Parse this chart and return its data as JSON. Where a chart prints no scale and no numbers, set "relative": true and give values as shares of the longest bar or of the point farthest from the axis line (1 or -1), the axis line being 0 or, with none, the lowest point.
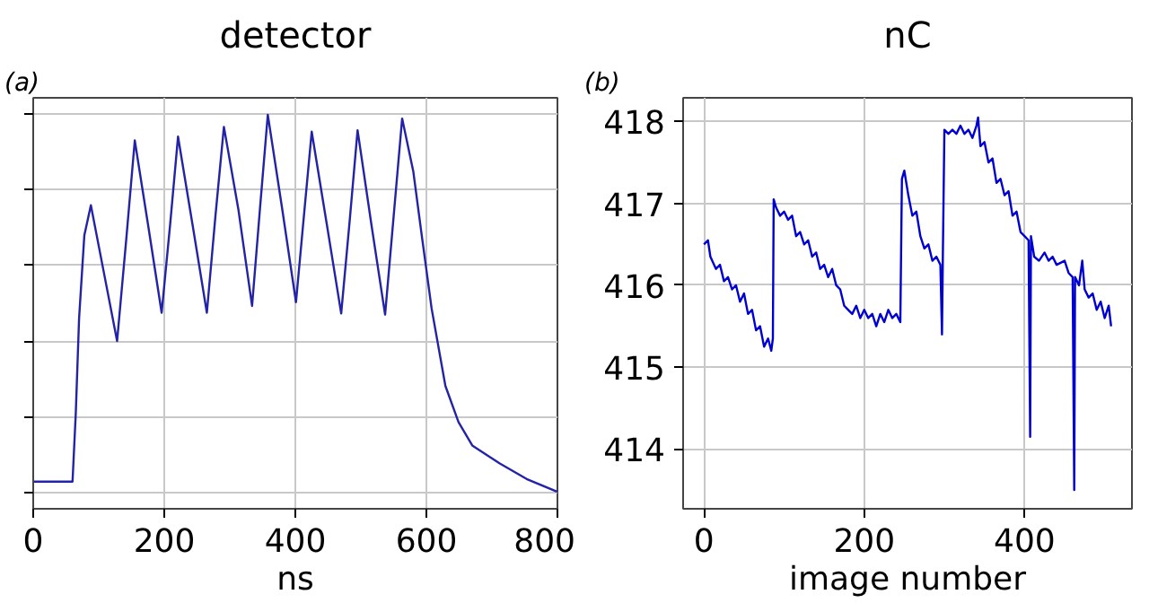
{
  "chart_data": [
    {
      "type": "line",
      "title": "detector",
      "xlabel": "ns",
      "annotations": [
        "(a)"
      ],
      "relative": true,
      "grid": true,
      "tick_labels": "x",
      "xlim": [
        0,
        800
      ],
      "xticks": [
        0,
        200,
        400,
        600,
        800
      ],
      "series": [
        {
          "color": "#2323a8",
          "x": [
            0,
            60,
            65,
            70,
            78,
            88,
            108,
            128,
            142,
            155,
            176,
            196,
            209,
            221,
            243,
            265,
            278,
            291,
            313,
            334,
            346,
            358,
            380,
            401,
            413,
            425,
            448,
            470,
            483,
            495,
            516,
            537,
            550,
            563,
            580,
            592,
            608,
            629,
            649,
            670,
            712,
            753,
            800
          ],
          "values": [
            0.027,
            0.027,
            0.21,
            0.46,
            0.68,
            0.76,
            0.58,
            0.4,
            0.67,
            0.932,
            0.7,
            0.475,
            0.71,
            0.942,
            0.71,
            0.475,
            0.73,
            0.968,
            0.75,
            0.493,
            0.75,
            1.0,
            0.75,
            0.503,
            0.73,
            0.955,
            0.71,
            0.473,
            0.72,
            0.959,
            0.71,
            0.47,
            0.73,
            0.99,
            0.85,
            0.692,
            0.486,
            0.281,
            0.185,
            0.123,
            0.075,
            0.034,
            0.0
          ]
        }
      ]
    },
    {
      "type": "line",
      "title": "nC",
      "xlabel": "image number",
      "annotations": [
        "(b)"
      ],
      "grid": true,
      "xlim": [
        -26,
        534
      ],
      "xticks": [
        0,
        200,
        400
      ],
      "ylim": [
        413.27,
        418.29
      ],
      "yticks": [
        414,
        415,
        416,
        417,
        418
      ],
      "series": [
        {
          "color": "#0000d0",
          "x": [
            0,
            5,
            8,
            15,
            20,
            25,
            30,
            35,
            40,
            45,
            50,
            55,
            60,
            65,
            70,
            75,
            80,
            84,
            86,
            87,
            90,
            95,
            100,
            105,
            110,
            115,
            120,
            125,
            130,
            135,
            140,
            145,
            150,
            155,
            160,
            165,
            170,
            175,
            180,
            185,
            190,
            195,
            200,
            205,
            210,
            215,
            220,
            225,
            230,
            235,
            240,
            245,
            247,
            250,
            255,
            260,
            265,
            270,
            275,
            280,
            285,
            290,
            295,
            297,
            298,
            300,
            305,
            310,
            315,
            320,
            325,
            330,
            335,
            340,
            342,
            345,
            350,
            355,
            360,
            365,
            370,
            375,
            380,
            385,
            390,
            395,
            400,
            405,
            407,
            408,
            412,
            418,
            425,
            430,
            435,
            440,
            450,
            455,
            460,
            462,
            463,
            468,
            472,
            475,
            480,
            485,
            490,
            495,
            500,
            505,
            508
          ],
          "values": [
            416.5,
            416.55,
            416.35,
            416.2,
            416.25,
            416.05,
            416.1,
            415.95,
            416.0,
            415.8,
            415.9,
            415.65,
            415.7,
            415.45,
            415.5,
            415.25,
            415.35,
            415.2,
            415.35,
            417.05,
            416.95,
            416.85,
            416.9,
            416.8,
            416.85,
            416.6,
            416.65,
            416.5,
            416.55,
            416.35,
            416.4,
            416.2,
            416.25,
            416.1,
            416.2,
            416.0,
            415.95,
            415.75,
            415.7,
            415.65,
            415.75,
            415.6,
            415.7,
            415.6,
            415.65,
            415.5,
            415.65,
            415.55,
            415.7,
            415.6,
            415.65,
            415.55,
            417.3,
            417.4,
            417.1,
            416.85,
            416.9,
            416.6,
            416.45,
            416.5,
            416.3,
            416.35,
            416.25,
            415.4,
            416.3,
            417.9,
            417.85,
            417.9,
            417.85,
            417.95,
            417.85,
            417.9,
            417.8,
            417.95,
            418.05,
            417.7,
            417.75,
            417.5,
            417.55,
            417.25,
            417.3,
            417.1,
            417.15,
            416.85,
            416.9,
            416.65,
            416.6,
            416.55,
            414.15,
            416.6,
            416.35,
            416.3,
            416.4,
            416.3,
            416.35,
            416.25,
            416.3,
            416.15,
            416.1,
            413.5,
            416.1,
            416.0,
            416.3,
            415.95,
            415.85,
            415.9,
            415.7,
            415.8,
            415.6,
            415.75,
            415.5
          ]
        }
      ]
    }
  ]
}
